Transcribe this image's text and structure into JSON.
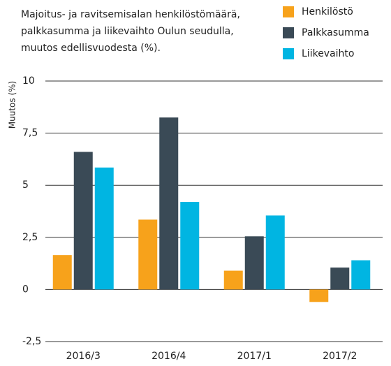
{
  "chart_data": {
    "type": "bar",
    "title": [
      "Majoitus- ja ravitsemisalan henkilöstömäärä,",
      "palkkasumma ja liikevaihto Oulun seudulla,",
      "muutos edellisvuodesta (%)."
    ],
    "ylabel": "Muutos  (%)",
    "categories": [
      "2016/3",
      "2016/4",
      "2017/1",
      "2017/2"
    ],
    "series": [
      {
        "name": "Henkilöstö",
        "color": "#f7a21b",
        "values": [
          1.65,
          3.35,
          0.9,
          -0.6
        ]
      },
      {
        "name": "Palkkasumma",
        "color": "#3a4a56",
        "values": [
          6.6,
          8.25,
          2.55,
          1.05
        ]
      },
      {
        "name": "Liikevaihto",
        "color": "#00b5e2",
        "values": [
          5.85,
          4.2,
          3.55,
          1.4
        ]
      }
    ],
    "ylim": [
      -2.5,
      10
    ],
    "yticks": [
      {
        "value": -2.5,
        "label": "-2,5"
      },
      0,
      {
        "value": 2.5,
        "label": "2,5"
      },
      5,
      {
        "value": 7.5,
        "label": "7,5"
      },
      10
    ],
    "grid": true,
    "legend": "top-right"
  }
}
